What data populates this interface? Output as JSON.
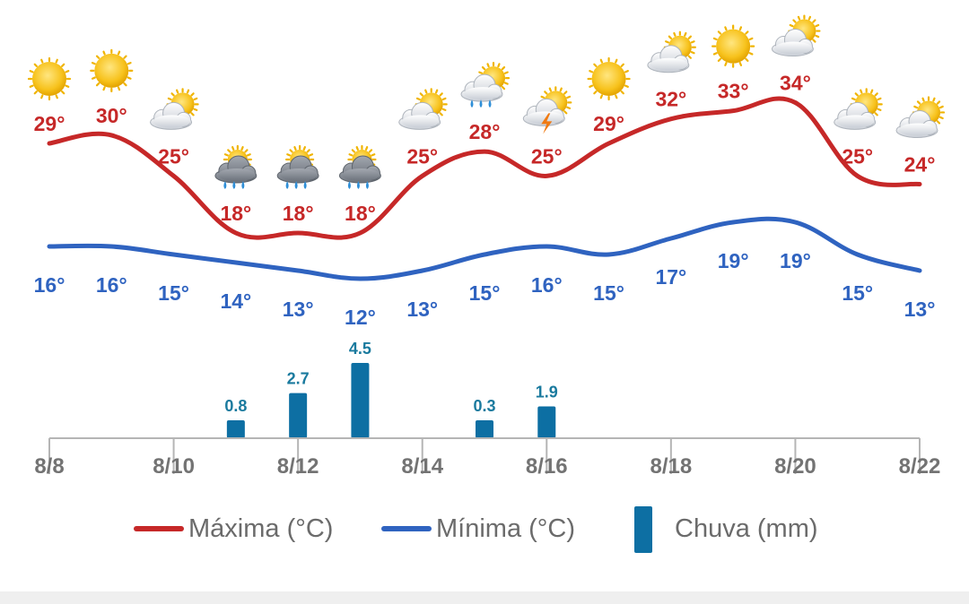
{
  "chart_data": {
    "type": "line",
    "x": [
      "8/8",
      "8/9",
      "8/10",
      "8/11",
      "8/12",
      "8/13",
      "8/14",
      "8/15",
      "8/16",
      "8/17",
      "8/18",
      "8/19",
      "8/20",
      "8/21",
      "8/22"
    ],
    "series": [
      {
        "name": "Máxima (°C)",
        "type": "line",
        "color": "#c62828",
        "values": [
          29,
          30,
          25,
          18,
          18,
          18,
          25,
          28,
          25,
          29,
          32,
          33,
          34,
          25,
          24
        ]
      },
      {
        "name": "Mínima (°C)",
        "type": "line",
        "color": "#2f63c0",
        "values": [
          16,
          16,
          15,
          14,
          13,
          12,
          13,
          15,
          16,
          15,
          17,
          19,
          19,
          15,
          13
        ]
      },
      {
        "name": "Chuva (mm)",
        "type": "bar",
        "color": "#0d6fa3",
        "values": [
          null,
          null,
          null,
          0.8,
          2.7,
          4.5,
          null,
          0.3,
          1.9,
          null,
          null,
          null,
          null,
          null,
          null
        ]
      }
    ],
    "icons": [
      "sun-icon",
      "sun-icon",
      "partly-cloudy-icon",
      "rain-icon",
      "rain-icon",
      "rain-icon",
      "partly-cloudy-icon",
      "sun-cloud-rain-icon",
      "storm-icon",
      "sun-icon",
      "partly-cloudy-icon",
      "sun-icon",
      "partly-cloudy-icon",
      "partly-cloudy-icon",
      "partly-cloudy-icon"
    ],
    "xtick_labels": [
      "8/8",
      "8/10",
      "8/12",
      "8/14",
      "8/16",
      "8/18",
      "8/20",
      "8/22"
    ],
    "title": "",
    "xlabel": "",
    "ylabel": "",
    "temp_unit_suffix": "°",
    "legend_position": "bottom",
    "grid": false
  }
}
